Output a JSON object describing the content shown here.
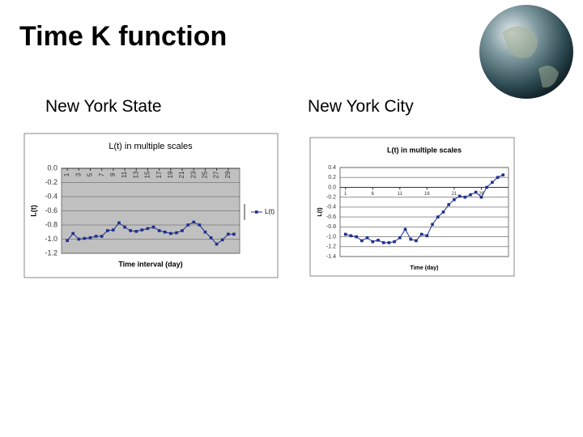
{
  "title": "Time K function",
  "chart_data": [
    {
      "type": "line",
      "heading": "New York State",
      "title": "L(t) in multiple scales",
      "x_label": "Time interval (day)",
      "y_label": "L(t)",
      "x": [
        1,
        2,
        3,
        4,
        5,
        6,
        7,
        8,
        9,
        10,
        11,
        12,
        13,
        14,
        15,
        16,
        17,
        18,
        19,
        20,
        21,
        22,
        23,
        24,
        25,
        26,
        27,
        28,
        29,
        30
      ],
      "series": [
        {
          "name": "L(t)",
          "color": "#1f2f8f",
          "values": [
            -1.02,
            -0.92,
            -1.0,
            -0.99,
            -0.98,
            -0.96,
            -0.96,
            -0.88,
            -0.87,
            -0.77,
            -0.83,
            -0.88,
            -0.89,
            -0.87,
            -0.85,
            -0.83,
            -0.88,
            -0.9,
            -0.92,
            -0.91,
            -0.88,
            -0.8,
            -0.76,
            -0.8,
            -0.9,
            -0.98,
            -1.07,
            -1.01,
            -0.93,
            -0.93
          ]
        }
      ],
      "xlim": [
        0,
        31
      ],
      "xticks": [
        1,
        3,
        5,
        7,
        9,
        11,
        13,
        15,
        17,
        19,
        21,
        23,
        25,
        27,
        29
      ],
      "ylim": [
        -1.2,
        0
      ],
      "yticks": [
        {
          "value": 0,
          "label": "0.0"
        },
        -0.2,
        -0.4,
        -0.6,
        -0.8,
        {
          "value": -1,
          "label": "-1.0"
        },
        -1.2
      ],
      "grid": true,
      "plot_background": "#c0c0c0",
      "legend": "right"
    },
    {
      "type": "line",
      "heading": "New York City",
      "title": "L(t) in multiple scales",
      "x_label": "Time (day)",
      "y_label": "L(t)",
      "x": [
        1,
        2,
        3,
        4,
        5,
        6,
        7,
        8,
        9,
        10,
        11,
        12,
        13,
        14,
        15,
        16,
        17,
        18,
        19,
        20,
        21,
        22,
        23,
        24,
        25,
        26,
        27,
        28,
        29,
        30
      ],
      "series": [
        {
          "color": "#1f2f8f",
          "values": [
            -0.95,
            -0.98,
            -1.0,
            -1.08,
            -1.02,
            -1.1,
            -1.07,
            -1.12,
            -1.12,
            -1.1,
            -1.02,
            -0.85,
            -1.05,
            -1.08,
            -0.95,
            -0.98,
            -0.75,
            -0.6,
            -0.5,
            -0.35,
            -0.25,
            -0.18,
            -0.2,
            -0.15,
            -0.1,
            -0.2,
            0.0,
            0.1,
            0.2,
            0.25
          ]
        }
      ],
      "xlim": [
        0,
        31
      ],
      "xticks": [
        1,
        6,
        11,
        16,
        21,
        26
      ],
      "ylim": [
        -1.4,
        0.4
      ],
      "yticks": [
        0.4,
        0.2,
        {
          "value": 0,
          "label": "0.0"
        },
        -0.2,
        -0.4,
        -0.6,
        -0.8,
        {
          "value": -1,
          "label": "-1.0"
        },
        -1.2,
        -1.4
      ],
      "grid": true,
      "plot_background": "#ffffff",
      "legend": "none"
    }
  ]
}
